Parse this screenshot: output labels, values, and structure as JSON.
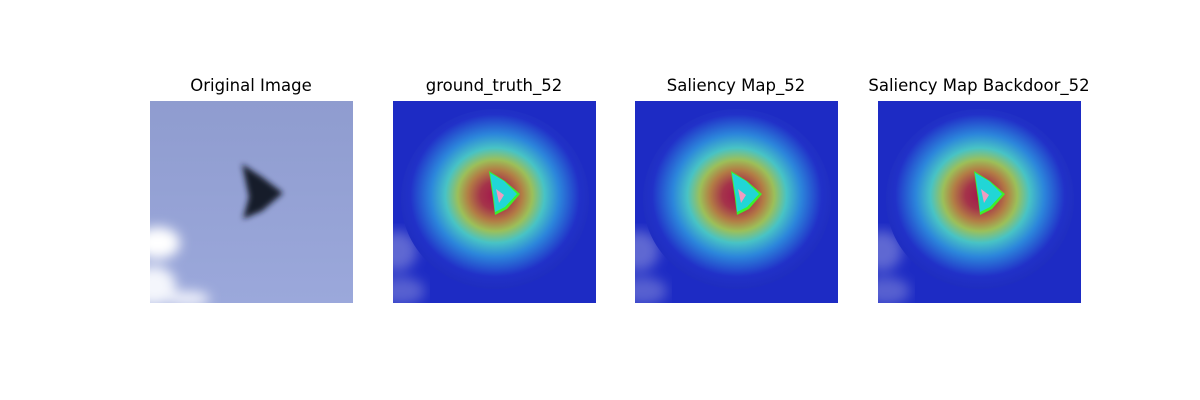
{
  "panels": [
    {
      "title": "Original Image",
      "kind": "photo",
      "subject": "dark triangular object against blue sky"
    },
    {
      "title": "ground_truth_52",
      "kind": "saliency-heatmap"
    },
    {
      "title": "Saliency Map_52",
      "kind": "saliency-heatmap"
    },
    {
      "title": "Saliency Map Backdoor_52",
      "kind": "saliency-heatmap"
    }
  ],
  "colors": {
    "sky": "#97a4d6",
    "object": "#151a2a",
    "heat_low": "#1d2bc4",
    "heat_mid": "#3cc8c8",
    "heat_high": "#a3164c",
    "center_cyan": "#21d6d6",
    "center_pink": "#ef9cc0",
    "edge_green": "#3cf02a"
  }
}
